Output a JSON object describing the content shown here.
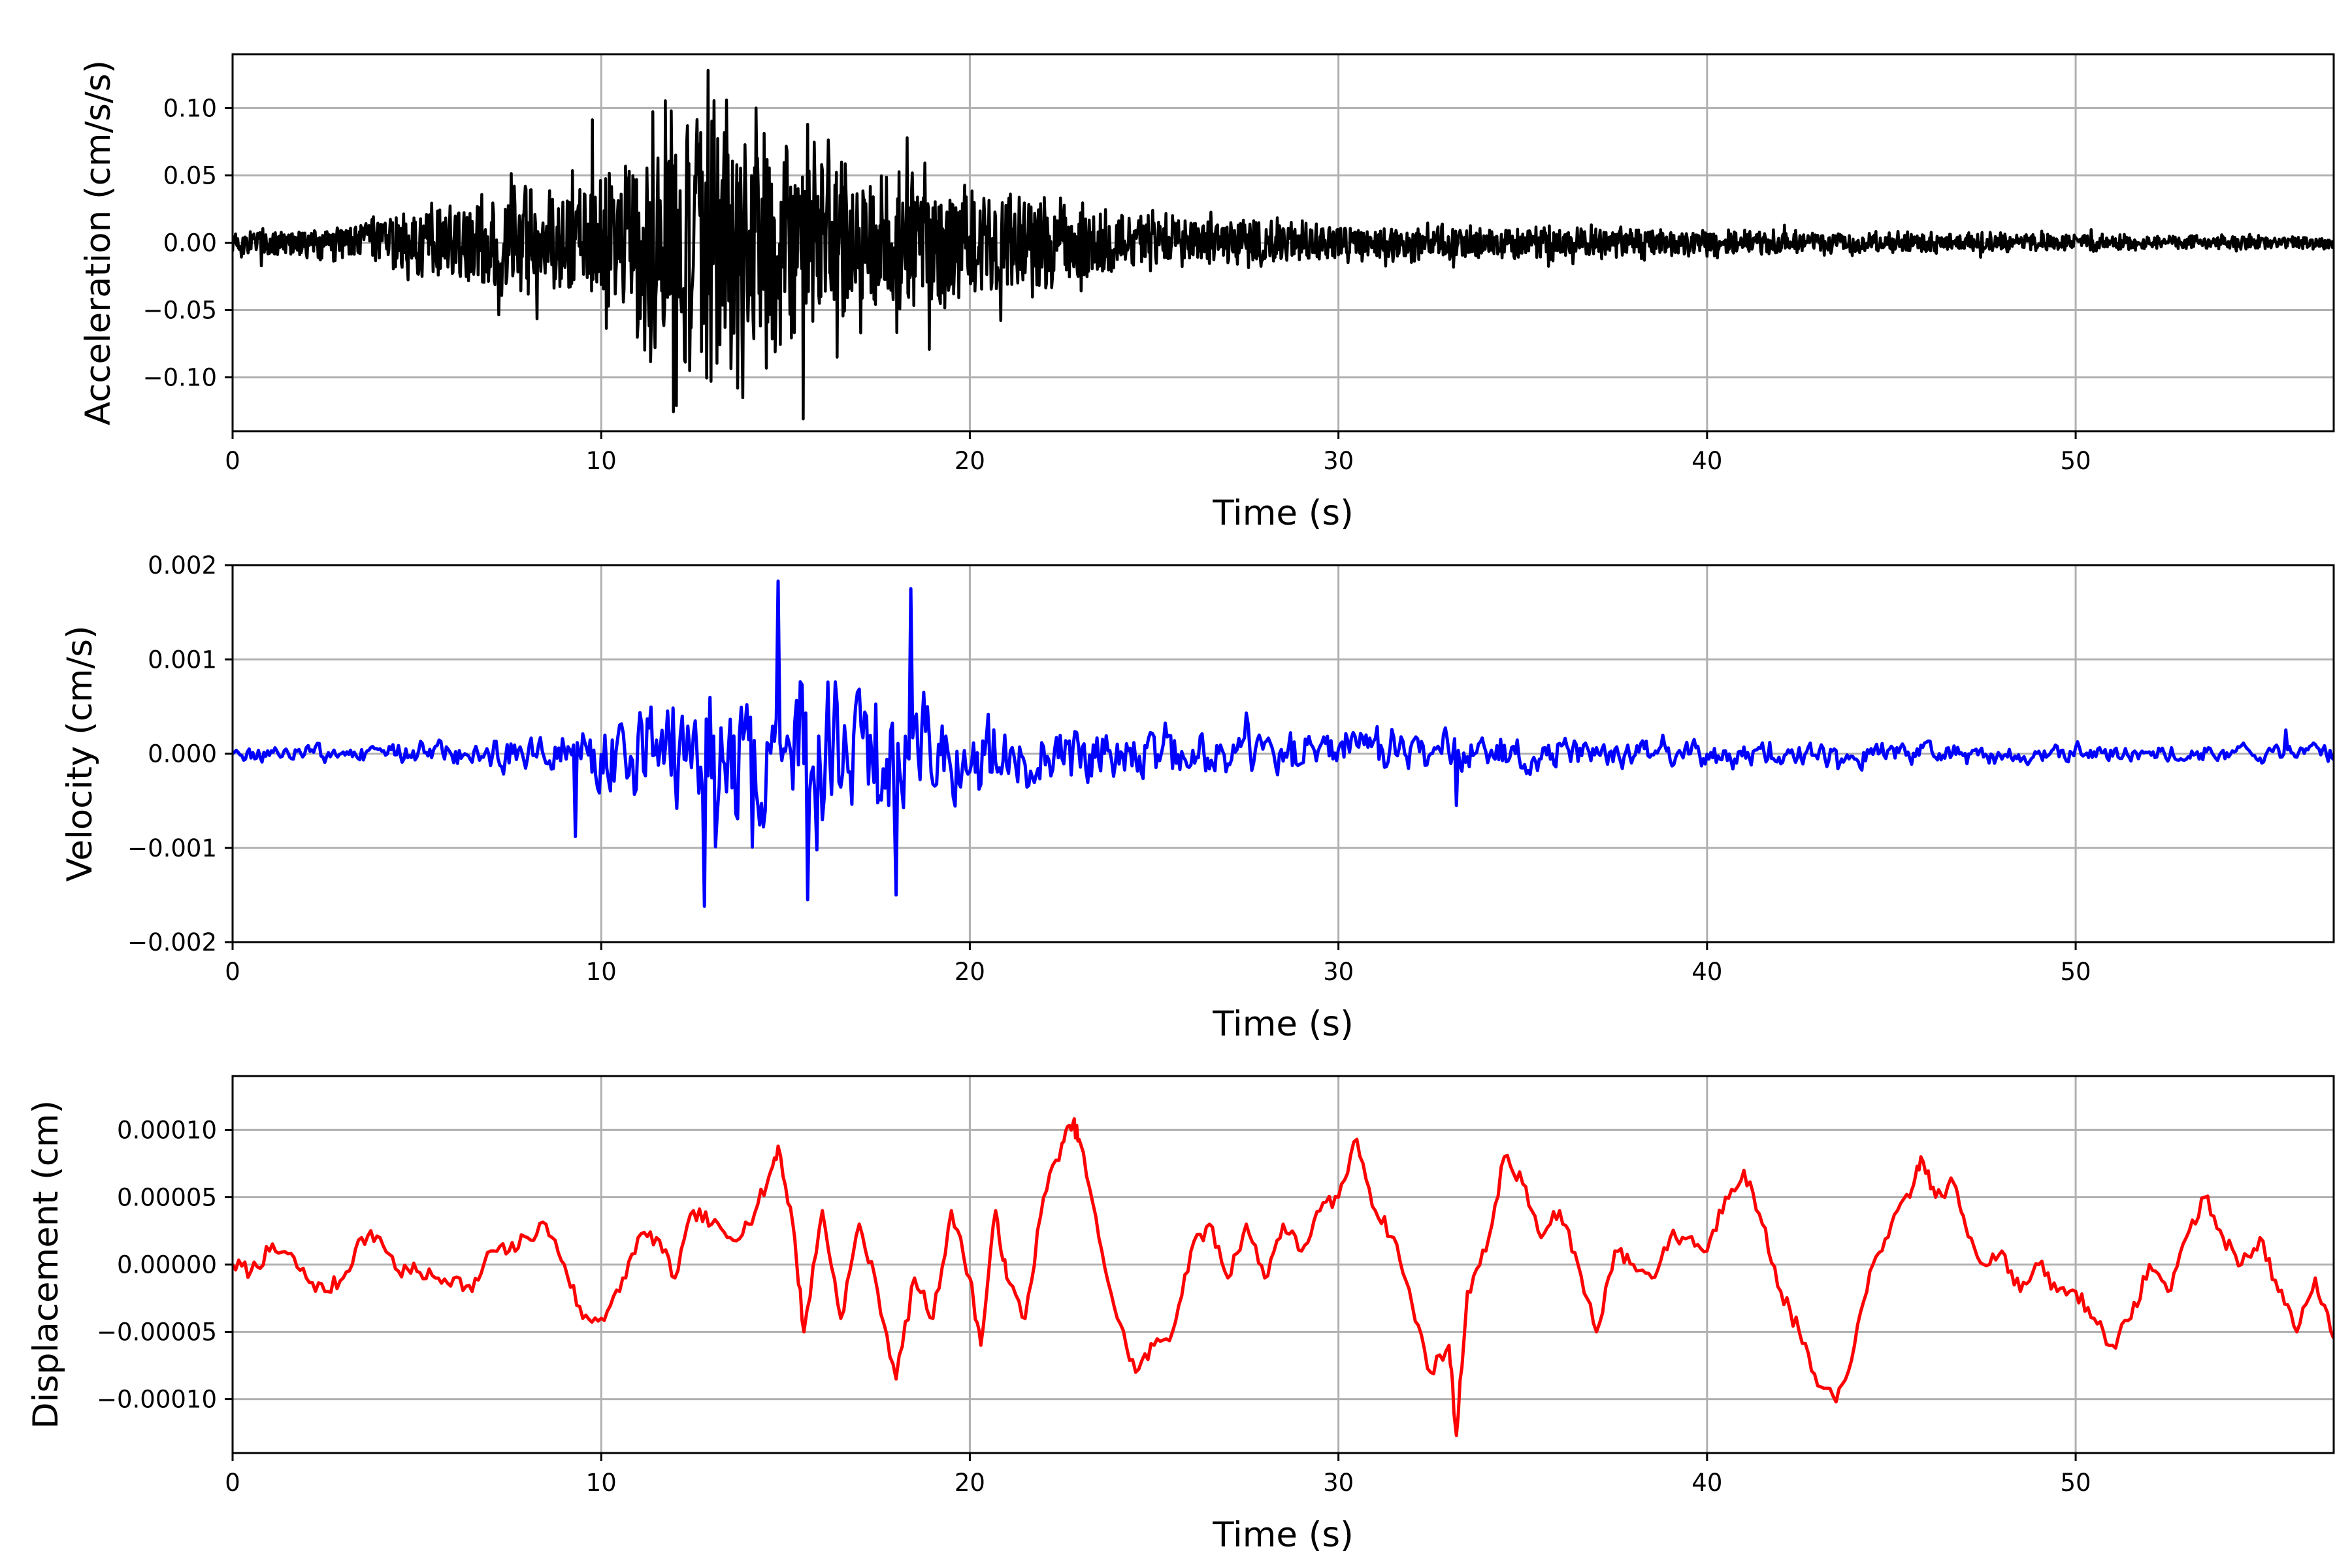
{
  "chart_data": [
    {
      "type": "line",
      "xlabel": "Time (s)",
      "ylabel": "Acceleration (cm/s/s)",
      "xlim": [
        0,
        57
      ],
      "ylim": [
        -0.14,
        0.14
      ],
      "xticks": [
        0,
        10,
        20,
        30,
        40,
        50
      ],
      "xtick_labels": [
        "0",
        "10",
        "20",
        "30",
        "40",
        "50"
      ],
      "yticks": [
        0.1,
        0.05,
        0.0,
        -0.05,
        -0.1
      ],
      "ytick_labels": [
        "0.10",
        "0.05",
        "0.00",
        "−0.05",
        "−0.10"
      ],
      "grid": true,
      "series": [
        {
          "color": "#000000",
          "envelope": [
            [
              0,
              0.012
            ],
            [
              3,
              0.015
            ],
            [
              5,
              0.03
            ],
            [
              8,
              0.045
            ],
            [
              10,
              0.06
            ],
            [
              11,
              0.08
            ],
            [
              12.8,
              0.125
            ],
            [
              14,
              0.1
            ],
            [
              15.5,
              0.09
            ],
            [
              17,
              0.07
            ],
            [
              18.5,
              0.065
            ],
            [
              20,
              0.045
            ],
            [
              23,
              0.035
            ],
            [
              26,
              0.02
            ],
            [
              30,
              0.017
            ],
            [
              40,
              0.011
            ],
            [
              50,
              0.007
            ],
            [
              57,
              0.005
            ]
          ],
          "peaks": [
            [
              12.9,
              0.128
            ],
            [
              13.7,
              -0.108
            ],
            [
              11.9,
              0.098
            ],
            [
              14.2,
              0.1
            ],
            [
              15.6,
              0.088
            ],
            [
              16.4,
              -0.085
            ],
            [
              12.4,
              -0.095
            ],
            [
              18.3,
              0.078
            ]
          ]
        }
      ]
    },
    {
      "type": "line",
      "xlabel": "Time (s)",
      "ylabel": "Velocity (cm/s)",
      "xlim": [
        0,
        57
      ],
      "ylim": [
        -0.002,
        0.002
      ],
      "xticks": [
        0,
        10,
        20,
        30,
        40,
        50
      ],
      "xtick_labels": [
        "0",
        "10",
        "20",
        "30",
        "40",
        "50"
      ],
      "yticks": [
        0.002,
        0.001,
        0.0,
        -0.001,
        -0.002
      ],
      "ytick_labels": [
        "0.002",
        "0.001",
        "0.000",
        "−0.001",
        "−0.002"
      ],
      "grid": true,
      "series": [
        {
          "color": "#0000ff",
          "envelope": [
            [
              0,
              0.00015
            ],
            [
              5,
              0.0002
            ],
            [
              9,
              0.0004
            ],
            [
              10,
              0.0006
            ],
            [
              11.5,
              0.0012
            ],
            [
              13,
              0.0015
            ],
            [
              14.8,
              0.0017
            ],
            [
              16,
              0.0014
            ],
            [
              18.3,
              0.0015
            ],
            [
              19.5,
              0.0009
            ],
            [
              22,
              0.0006
            ],
            [
              26,
              0.0005
            ],
            [
              30,
              0.0004
            ],
            [
              35,
              0.0003
            ],
            [
              40,
              0.00025
            ],
            [
              50,
              0.00018
            ],
            [
              57,
              0.00015
            ]
          ],
          "peaks": [
            [
              14.8,
              0.00183
            ],
            [
              12.8,
              -0.00162
            ],
            [
              18.4,
              0.00175
            ],
            [
              18.0,
              -0.0015
            ],
            [
              15.6,
              -0.00155
            ],
            [
              9.3,
              -0.00088
            ],
            [
              33.2,
              -0.00055
            ],
            [
              55.7,
              0.00025
            ]
          ]
        }
      ]
    },
    {
      "type": "line",
      "xlabel": "Time (s)",
      "ylabel": "Displacement (cm)",
      "xlim": [
        0,
        57
      ],
      "ylim": [
        -0.00014,
        0.00014
      ],
      "xticks": [
        0,
        10,
        20,
        30,
        40,
        50
      ],
      "xtick_labels": [
        "0",
        "10",
        "20",
        "30",
        "40",
        "50"
      ],
      "yticks": [
        0.0001,
        5e-05,
        0.0,
        -5e-05,
        -0.0001
      ],
      "ytick_labels": [
        "0.00010",
        "0.00005",
        "0.00000",
        "−0.00005",
        "−0.00010"
      ],
      "grid": true,
      "series": [
        {
          "color": "#ff0000",
          "points": [
            [
              0,
              0.0
            ],
            [
              0.5,
              -5e-06
            ],
            [
              1.0,
              1e-05
            ],
            [
              1.5,
              8e-06
            ],
            [
              2.0,
              -1e-05
            ],
            [
              2.5,
              -2e-05
            ],
            [
              3.0,
              -1e-05
            ],
            [
              3.5,
              2e-05
            ],
            [
              4.0,
              2e-05
            ],
            [
              4.5,
              -5e-06
            ],
            [
              5.0,
              -5e-06
            ],
            [
              5.5,
              -1e-05
            ],
            [
              6.0,
              -1e-05
            ],
            [
              6.5,
              -2e-05
            ],
            [
              7.0,
              1e-05
            ],
            [
              7.5,
              1e-05
            ],
            [
              8.0,
              2e-05
            ],
            [
              8.5,
              3e-05
            ],
            [
              9.0,
              0.0
            ],
            [
              9.5,
              -4e-05
            ],
            [
              10.0,
              -4e-05
            ],
            [
              10.5,
              -2e-05
            ],
            [
              11.0,
              2e-05
            ],
            [
              11.5,
              2e-05
            ],
            [
              12.0,
              -1e-05
            ],
            [
              12.5,
              4e-05
            ],
            [
              13.0,
              3e-05
            ],
            [
              13.5,
              2e-05
            ],
            [
              14.0,
              3e-05
            ],
            [
              14.5,
              6e-05
            ],
            [
              14.8,
              8.8e-05
            ],
            [
              15.2,
              3e-05
            ],
            [
              15.5,
              -5e-05
            ],
            [
              16.0,
              4e-05
            ],
            [
              16.5,
              -4e-05
            ],
            [
              17.0,
              3e-05
            ],
            [
              17.5,
              -2e-05
            ],
            [
              18.0,
              -8.5e-05
            ],
            [
              18.5,
              -1e-05
            ],
            [
              19.0,
              -4e-05
            ],
            [
              19.5,
              4e-05
            ],
            [
              20.0,
              -1e-05
            ],
            [
              20.3,
              -6e-05
            ],
            [
              20.7,
              4e-05
            ],
            [
              21.0,
              -1e-05
            ],
            [
              21.5,
              -4e-05
            ],
            [
              22.0,
              5e-05
            ],
            [
              22.5,
              9e-05
            ],
            [
              22.8,
              0.000105
            ],
            [
              23.0,
              9e-05
            ],
            [
              23.5,
              2e-05
            ],
            [
              24.0,
              -4e-05
            ],
            [
              24.5,
              -8e-05
            ],
            [
              25.0,
              -6e-05
            ],
            [
              25.5,
              -5e-05
            ],
            [
              26.0,
              1e-05
            ],
            [
              26.5,
              3e-05
            ],
            [
              27.0,
              -1e-05
            ],
            [
              27.5,
              3e-05
            ],
            [
              28.0,
              -1e-05
            ],
            [
              28.5,
              3e-05
            ],
            [
              29.0,
              1e-05
            ],
            [
              29.5,
              4e-05
            ],
            [
              30.0,
              5e-05
            ],
            [
              30.5,
              9.3e-05
            ],
            [
              31.0,
              4e-05
            ],
            [
              31.5,
              2e-05
            ],
            [
              32.0,
              -3e-05
            ],
            [
              32.5,
              -8e-05
            ],
            [
              33.0,
              -6e-05
            ],
            [
              33.2,
              -0.000127
            ],
            [
              33.5,
              -2e-05
            ],
            [
              34.0,
              1e-05
            ],
            [
              34.5,
              8e-05
            ],
            [
              35.0,
              6e-05
            ],
            [
              35.5,
              2e-05
            ],
            [
              36.0,
              4e-05
            ],
            [
              36.5,
              0.0
            ],
            [
              37.0,
              -5e-05
            ],
            [
              37.5,
              1e-05
            ],
            [
              38.0,
              0.0
            ],
            [
              38.5,
              -1e-05
            ],
            [
              39.0,
              2e-05
            ],
            [
              39.5,
              2e-05
            ],
            [
              40.0,
              1e-05
            ],
            [
              40.5,
              5e-05
            ],
            [
              41.0,
              7e-05
            ],
            [
              41.5,
              3e-05
            ],
            [
              42.0,
              -2e-05
            ],
            [
              42.5,
              -5e-05
            ],
            [
              43.0,
              -9e-05
            ],
            [
              43.5,
              -0.000102
            ],
            [
              44.0,
              -6e-05
            ],
            [
              44.5,
              0.0
            ],
            [
              45.0,
              3e-05
            ],
            [
              45.5,
              5e-05
            ],
            [
              45.8,
              8e-05
            ],
            [
              46.2,
              5e-05
            ],
            [
              46.7,
              6e-05
            ],
            [
              47.0,
              3e-05
            ],
            [
              47.5,
              0.0
            ],
            [
              48.0,
              1e-05
            ],
            [
              48.5,
              -2e-05
            ],
            [
              49.0,
              0.0
            ],
            [
              49.5,
              -2e-05
            ],
            [
              50.0,
              -2e-05
            ],
            [
              50.5,
              -4e-05
            ],
            [
              51.0,
              -6e-05
            ],
            [
              51.5,
              -4e-05
            ],
            [
              52.0,
              0.0
            ],
            [
              52.5,
              -2e-05
            ],
            [
              53.0,
              2e-05
            ],
            [
              53.5,
              5e-05
            ],
            [
              54.0,
              2e-05
            ],
            [
              54.5,
              0.0
            ],
            [
              55.0,
              2e-05
            ],
            [
              55.5,
              -2e-05
            ],
            [
              56.0,
              -5e-05
            ],
            [
              56.5,
              -1e-05
            ],
            [
              57.0,
              -5.5e-05
            ]
          ]
        }
      ]
    }
  ]
}
